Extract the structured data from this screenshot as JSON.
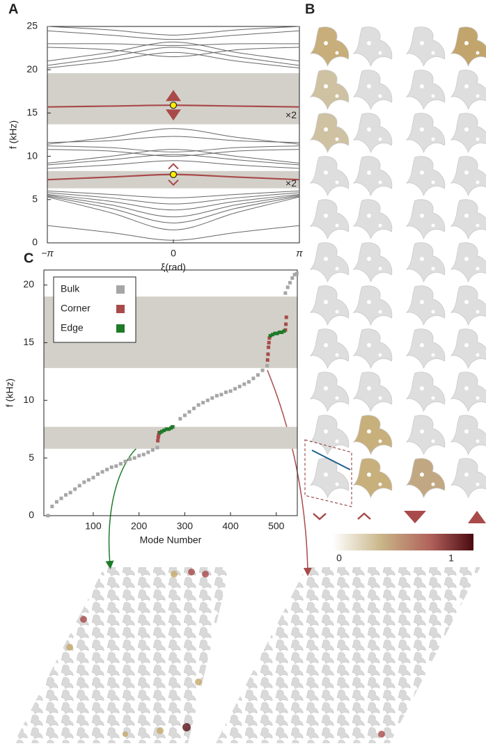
{
  "panel_labels": [
    "A",
    "B",
    "C"
  ],
  "colorbar_labels": [
    "0",
    "1"
  ],
  "chart_data": [
    {
      "type": "line",
      "xlabel": "ξ(rad)",
      "ylabel": "f (kHz)",
      "x": [
        -3.14159,
        -1.5708,
        0,
        1.5708,
        3.14159
      ],
      "xlim": [
        -3.14159,
        3.14159
      ],
      "xticks": [
        {
          "value": -3.14159,
          "label": "−π"
        },
        0,
        {
          "value": 3.14159,
          "label": "π"
        }
      ],
      "ylim": [
        0,
        25
      ],
      "yticks": [
        0,
        5,
        10,
        15,
        20,
        25
      ],
      "shaded_bands": [
        [
          13.7,
          19.6
        ],
        [
          6.3,
          8.3
        ]
      ],
      "shade_color": "#d3d0c9",
      "series": [
        {
          "color": "#666666",
          "values": [
            2.0,
            1.2,
            0.3,
            1.2,
            2.0
          ]
        },
        {
          "color": "#666666",
          "values": [
            5.3,
            3.5,
            1.5,
            3.5,
            5.3
          ]
        },
        {
          "color": "#666666",
          "values": [
            5.4,
            4.0,
            2.3,
            4.0,
            5.4
          ]
        },
        {
          "color": "#666666",
          "values": [
            5.5,
            4.4,
            3.0,
            4.4,
            5.5
          ]
        },
        {
          "color": "#666666",
          "values": [
            5.6,
            4.8,
            3.8,
            4.8,
            5.6
          ]
        },
        {
          "color": "#666666",
          "values": [
            5.8,
            5.2,
            4.5,
            5.2,
            5.8
          ]
        },
        {
          "color": "#666666",
          "values": [
            6.0,
            5.6,
            5.2,
            5.6,
            6.0
          ]
        },
        {
          "color": "#666666",
          "values": [
            8.6,
            9.0,
            9.5,
            9.0,
            8.6
          ]
        },
        {
          "color": "#666666",
          "values": [
            9.0,
            9.6,
            10.2,
            9.6,
            9.0
          ]
        },
        {
          "color": "#666666",
          "values": [
            9.2,
            10.0,
            10.8,
            10.0,
            9.2
          ]
        },
        {
          "color": "#666666",
          "values": [
            10.8,
            10.6,
            10.0,
            10.6,
            10.8
          ]
        },
        {
          "color": "#666666",
          "values": [
            11.2,
            11.0,
            10.5,
            11.0,
            11.2
          ]
        },
        {
          "color": "#666666",
          "values": [
            11.6,
            11.8,
            12.3,
            11.8,
            11.6
          ]
        },
        {
          "color": "#666666",
          "values": [
            11.4,
            12.2,
            13.2,
            12.2,
            11.4
          ]
        },
        {
          "color": "#666666",
          "values": [
            20.2,
            21.0,
            22.0,
            21.0,
            20.2
          ]
        },
        {
          "color": "#666666",
          "values": [
            20.5,
            21.5,
            22.6,
            21.5,
            20.5
          ]
        },
        {
          "color": "#666666",
          "values": [
            21.0,
            22.0,
            23.2,
            22.0,
            21.0
          ]
        },
        {
          "color": "#666666",
          "values": [
            22.6,
            22.3,
            21.5,
            22.3,
            22.6
          ]
        },
        {
          "color": "#666666",
          "values": [
            23.0,
            23.0,
            22.8,
            23.0,
            23.0
          ]
        },
        {
          "color": "#666666",
          "values": [
            24.5,
            24.0,
            23.5,
            24.0,
            24.5
          ]
        },
        {
          "color": "#666666",
          "values": [
            25.0,
            24.6,
            24.0,
            24.6,
            25.0
          ]
        },
        {
          "color": "#a84a4a",
          "values": [
            15.7,
            15.8,
            15.9,
            15.8,
            15.7
          ]
        },
        {
          "color": "#a84a4a",
          "values": [
            7.3,
            7.6,
            7.9,
            7.6,
            7.3
          ]
        }
      ],
      "points": {
        "color": "#ffee00",
        "x": [
          0,
          0
        ],
        "y": [
          15.9,
          7.9
        ]
      },
      "annotations": [
        {
          "text": "×2",
          "y": 14.7
        },
        {
          "text": "×2",
          "y": 6.8
        }
      ]
    },
    {
      "type": "scatter",
      "xlabel": "Mode Number",
      "ylabel": "f (kHz)",
      "xlim": [
        -8,
        546
      ],
      "xticks": [
        100,
        200,
        300,
        400,
        500
      ],
      "ylim": [
        0,
        21.3
      ],
      "yticks": [
        0,
        5,
        10,
        15,
        20
      ],
      "shaded_bands": [
        [
          12.8,
          19.0
        ],
        [
          5.8,
          7.7
        ]
      ],
      "shade_color": "#d3d0c9",
      "legend": "upper left",
      "series": [
        {
          "name": "Bulk",
          "color": "#a6a6a6",
          "x": [
            1,
            10,
            20,
            30,
            40,
            50,
            60,
            70,
            80,
            90,
            100,
            110,
            120,
            130,
            140,
            150,
            160,
            170,
            180,
            190,
            200,
            210,
            220,
            230,
            240,
            275,
            290,
            300,
            310,
            320,
            330,
            340,
            350,
            360,
            370,
            380,
            390,
            400,
            410,
            420,
            430,
            440,
            450,
            460,
            470,
            480,
            520,
            525,
            530,
            535,
            540,
            545
          ],
          "values": [
            0,
            0.8,
            1.2,
            1.5,
            1.8,
            2.0,
            2.3,
            2.6,
            2.9,
            3.1,
            3.3,
            3.6,
            3.8,
            4.0,
            4.2,
            4.3,
            4.5,
            4.7,
            4.9,
            5.0,
            5.2,
            5.3,
            5.5,
            5.7,
            5.9,
            7.7,
            8.4,
            8.7,
            9.0,
            9.3,
            9.6,
            9.8,
            10.0,
            10.2,
            10.4,
            10.5,
            10.7,
            10.8,
            11.0,
            11.2,
            11.4,
            11.6,
            11.9,
            12.2,
            12.6,
            13.0,
            19.3,
            19.8,
            20.2,
            20.6,
            20.9,
            21.0
          ]
        },
        {
          "name": "Corner",
          "color": "#a84a4a",
          "x": [
            241,
            242,
            243,
            244,
            481,
            482,
            483,
            484,
            485,
            520,
            521,
            522
          ],
          "values": [
            6.5,
            6.8,
            7.0,
            7.2,
            13.5,
            14.0,
            14.6,
            15.0,
            15.4,
            16.1,
            16.6,
            17.2
          ]
        },
        {
          "name": "Edge",
          "color": "#1e7a28",
          "x": [
            246,
            250,
            255,
            260,
            265,
            270,
            273,
            487,
            492,
            497,
            502,
            507,
            512,
            517
          ],
          "values": [
            7.2,
            7.3,
            7.4,
            7.5,
            7.5,
            7.6,
            7.7,
            15.6,
            15.7,
            15.8,
            15.8,
            15.9,
            15.9,
            16.0
          ]
        }
      ]
    }
  ]
}
